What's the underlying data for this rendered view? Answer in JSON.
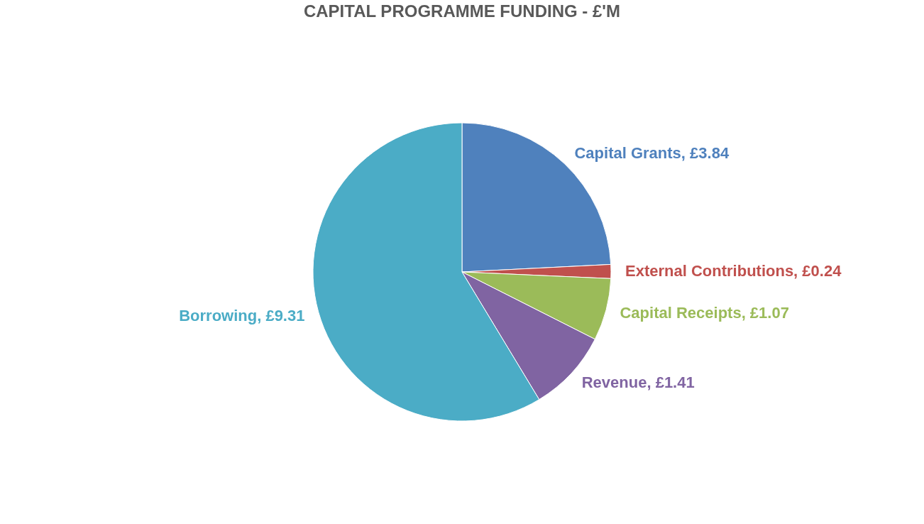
{
  "chart_data": {
    "type": "pie",
    "title": "CAPITAL PROGRAMME FUNDING - £'M",
    "categories": [
      "Capital Grants",
      "External Contributions",
      "Capital Receipts",
      "Revenue",
      "Borrowing"
    ],
    "values": [
      3.84,
      0.24,
      1.07,
      1.41,
      9.31
    ],
    "colors": [
      "#4f81bd",
      "#c0504d",
      "#9bbb59",
      "#8064a2",
      "#4bacc6"
    ],
    "value_labels": [
      "£3.84",
      "£0.24",
      "£1.07",
      "£1.41",
      "£9.31"
    ],
    "legend": false
  }
}
